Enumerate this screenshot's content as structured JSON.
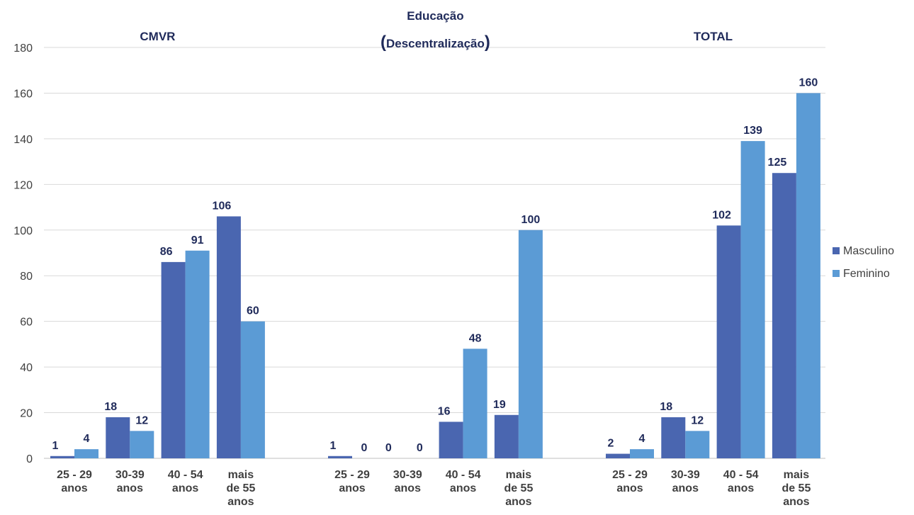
{
  "chart_data": {
    "type": "bar",
    "ylim": [
      0,
      180
    ],
    "yticks": [
      0,
      20,
      40,
      60,
      80,
      100,
      120,
      140,
      160,
      180
    ],
    "grid": true,
    "legend_position": "right",
    "colors": {
      "Masculino": "#4a66b0",
      "Feminino": "#5b9bd5",
      "labels": "#1f2a5a"
    },
    "categories": [
      [
        "25 - 29",
        "anos"
      ],
      [
        "30-39",
        "anos"
      ],
      [
        "40 - 54",
        "anos"
      ],
      [
        "mais",
        "de 55",
        "anos"
      ]
    ],
    "groups": [
      {
        "title": [
          "CMVR"
        ],
        "series": [
          {
            "name": "Masculino",
            "values": [
              1,
              18,
              86,
              106
            ]
          },
          {
            "name": "Feminino",
            "values": [
              4,
              12,
              91,
              60
            ]
          }
        ]
      },
      {
        "title": [
          "Educação",
          "(Descentralização)"
        ],
        "series": [
          {
            "name": "Masculino",
            "values": [
              1,
              0,
              16,
              19
            ]
          },
          {
            "name": "Feminino",
            "values": [
              0,
              0,
              48,
              100
            ]
          }
        ]
      },
      {
        "title": [
          "TOTAL"
        ],
        "series": [
          {
            "name": "Masculino",
            "values": [
              2,
              18,
              102,
              125
            ]
          },
          {
            "name": "Feminino",
            "values": [
              4,
              12,
              139,
              160
            ]
          }
        ]
      }
    ],
    "legend": [
      "Masculino",
      "Feminino"
    ]
  }
}
